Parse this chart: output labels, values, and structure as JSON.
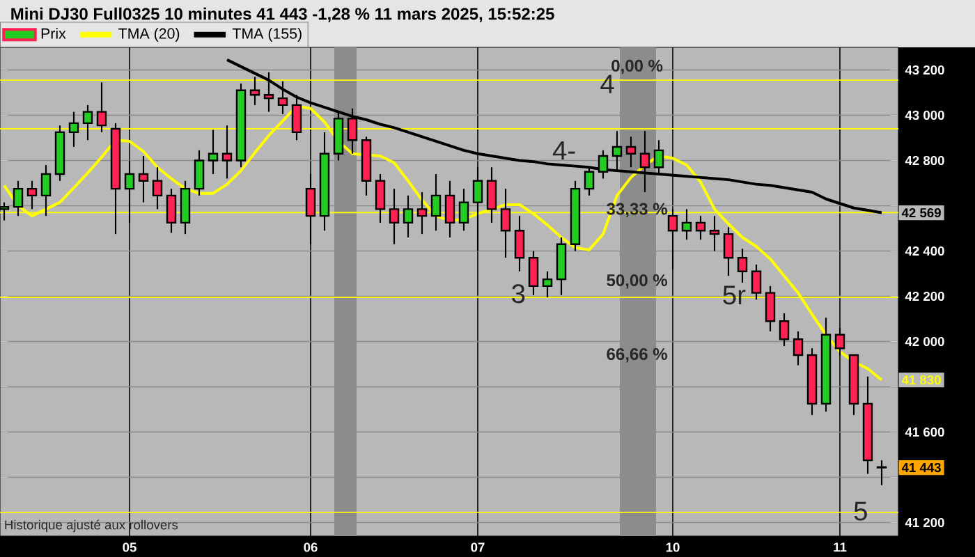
{
  "chart_data": {
    "type": "candlestick",
    "title": "Mini DJ30 Full0325 10 minutes 41 443 -1,28 % 11 mars 2025, 15:52:25",
    "annotations": [
      "Historique ajusté aux rollovers",
      "0,00 %",
      "33,33 %",
      "50,00 %",
      "66,66 %",
      "4",
      "4-",
      "3",
      "5r",
      "5"
    ],
    "categories": [
      null,
      null,
      null,
      null,
      null,
      null,
      null,
      null,
      null,
      "05",
      null,
      null,
      null,
      null,
      null,
      null,
      null,
      null,
      null,
      null,
      null,
      null,
      "06",
      null,
      null,
      null,
      null,
      null,
      null,
      null,
      null,
      null,
      null,
      null,
      "07",
      null,
      null,
      null,
      null,
      null,
      null,
      null,
      null,
      null,
      null,
      null,
      null,
      null,
      "10",
      null,
      null,
      null,
      null,
      null,
      null,
      null,
      null,
      null,
      null,
      null,
      "11",
      null,
      null,
      null
    ],
    "ylim": [
      41140,
      43300
    ],
    "yticks": [
      {
        "value": 41200,
        "label": "41 200"
      },
      {
        "value": 41400,
        "label": null
      },
      {
        "value": 41600,
        "label": "41 600"
      },
      {
        "value": 41800,
        "label": null
      },
      {
        "value": 42000,
        "label": "42 000"
      },
      {
        "value": 42200,
        "label": "42 200"
      },
      {
        "value": 42400,
        "label": "42 400"
      },
      {
        "value": 42600,
        "label": null
      },
      {
        "value": 42800,
        "label": "42 800"
      },
      {
        "value": 43000,
        "label": "43 000"
      },
      {
        "value": 43200,
        "label": "43 200"
      }
    ],
    "grid": true,
    "legend": "top left",
    "ref_lines": [
      {
        "axis": "y",
        "value": 43155,
        "color": "#ffff00"
      },
      {
        "axis": "y",
        "value": 42940,
        "color": "#ffff00"
      },
      {
        "axis": "y",
        "value": 42570,
        "color": "#ffff00"
      },
      {
        "axis": "y",
        "value": 42195,
        "color": "#ffff00"
      },
      {
        "axis": "y",
        "value": 41245,
        "color": "#ffff00"
      }
    ],
    "series": [
      {
        "name": "Prix",
        "colors": [
          "#22cc22",
          "#22cc22",
          "#ff2255",
          "#22cc22",
          "#22cc22",
          "#22cc22",
          "#22cc22",
          "#ff2255",
          "#ff2255",
          "#22cc22",
          "#ff2255",
          "#ff2255",
          "#ff2255",
          "#22cc22",
          "#22cc22",
          "#22cc22",
          "#ff2255",
          "#22cc22",
          "#ff2255",
          "#ff2255",
          "#ff2255",
          "#ff2255",
          "#ff2255",
          "#22cc22",
          "#22cc22",
          "#ff2255",
          "#ff2255",
          "#ff2255",
          "#ff2255",
          "#22cc22",
          "#ff2255",
          "#22cc22",
          "#ff2255",
          "#22cc22",
          "#22cc22",
          "#ff2255",
          "#ff2255",
          "#ff2255",
          "#ff2255",
          "#22cc22",
          "#22cc22",
          "#22cc22",
          "#22cc22",
          "#22cc22",
          "#22cc22",
          "#ff2255",
          "#ff2255",
          "#22cc22",
          "#ff2255",
          "#22cc22",
          "#ff2255",
          "#ff2255",
          "#ff2255",
          "#ff2255",
          "#ff2255",
          "#ff2255",
          "#ff2255",
          "#ff2255",
          "#ff2255",
          "#22cc22",
          "#ff2255",
          "#ff2255",
          "#ff2255",
          "#ff2255"
        ],
        "ohlc": [
          [
            42585,
            42615,
            42535,
            42595
          ],
          [
            42595,
            42710,
            42555,
            42675
          ],
          [
            42675,
            42710,
            42585,
            42645
          ],
          [
            42645,
            42780,
            42555,
            42740
          ],
          [
            42740,
            42955,
            42710,
            42925
          ],
          [
            42925,
            43015,
            42860,
            42965
          ],
          [
            42965,
            43045,
            42890,
            43015
          ],
          [
            43015,
            43145,
            42925,
            42955
          ],
          [
            42940,
            42965,
            42475,
            42675
          ],
          [
            42675,
            42800,
            42525,
            42740
          ],
          [
            42740,
            42820,
            42615,
            42710
          ],
          [
            42710,
            42770,
            42585,
            42645
          ],
          [
            42645,
            42675,
            42480,
            42525
          ],
          [
            42525,
            42710,
            42475,
            42675
          ],
          [
            42675,
            42845,
            42645,
            42800
          ],
          [
            42800,
            42935,
            42740,
            42830
          ],
          [
            42830,
            42955,
            42720,
            42800
          ],
          [
            42800,
            43140,
            42770,
            43110
          ],
          [
            43110,
            43170,
            43045,
            43090
          ],
          [
            43090,
            43190,
            43015,
            43075
          ],
          [
            43075,
            43150,
            43005,
            43045
          ],
          [
            43045,
            43090,
            42890,
            42925
          ],
          [
            42675,
            42740,
            42430,
            42555
          ],
          [
            42555,
            42925,
            42490,
            42830
          ],
          [
            42830,
            43015,
            42800,
            42985
          ],
          [
            42985,
            43030,
            42830,
            42890
          ],
          [
            42890,
            42905,
            42645,
            42710
          ],
          [
            42710,
            42740,
            42525,
            42585
          ],
          [
            42585,
            42675,
            42430,
            42525
          ],
          [
            42525,
            42645,
            42460,
            42585
          ],
          [
            42585,
            42660,
            42475,
            42555
          ],
          [
            42555,
            42740,
            42490,
            42645
          ],
          [
            42645,
            42710,
            42460,
            42525
          ],
          [
            42525,
            42675,
            42490,
            42615
          ],
          [
            42615,
            42770,
            42400,
            42710
          ],
          [
            42710,
            42770,
            42525,
            42585
          ],
          [
            42585,
            42675,
            42370,
            42490
          ],
          [
            42490,
            42555,
            42310,
            42370
          ],
          [
            42370,
            42400,
            42205,
            42245
          ],
          [
            42245,
            42310,
            42195,
            42275
          ],
          [
            42275,
            42460,
            42205,
            42430
          ],
          [
            42430,
            42710,
            42400,
            42675
          ],
          [
            42675,
            42770,
            42645,
            42750
          ],
          [
            42750,
            42845,
            42720,
            42820
          ],
          [
            42820,
            42930,
            42755,
            42860
          ],
          [
            42860,
            42905,
            42770,
            42830
          ],
          [
            42830,
            42930,
            42660,
            42770
          ],
          [
            42770,
            42890,
            42740,
            42845
          ],
          [
            42555,
            42585,
            42320,
            42490
          ],
          [
            42490,
            42585,
            42450,
            42525
          ],
          [
            42525,
            42555,
            42450,
            42490
          ],
          [
            42490,
            42555,
            42400,
            42475
          ],
          [
            42475,
            42505,
            42290,
            42370
          ],
          [
            42370,
            42410,
            42260,
            42310
          ],
          [
            42310,
            42340,
            42185,
            42215
          ],
          [
            42215,
            42245,
            42045,
            42090
          ],
          [
            42090,
            42125,
            41980,
            42010
          ],
          [
            42010,
            42045,
            41895,
            41940
          ],
          [
            41940,
            41970,
            41675,
            41725
          ],
          [
            41725,
            42105,
            41690,
            42030
          ],
          [
            42030,
            42060,
            41940,
            41970
          ],
          [
            41940,
            41940,
            41675,
            41725
          ],
          [
            41725,
            41845,
            41415,
            41475
          ],
          [
            41445,
            41475,
            41365,
            41443
          ]
        ],
        "value_labels": [
          null,
          null,
          null,
          null,
          null,
          null,
          null,
          null,
          null,
          null,
          null,
          null,
          null,
          null,
          null,
          null,
          null,
          null,
          null,
          null,
          null,
          null,
          null,
          null,
          null,
          null,
          null,
          null,
          null,
          null,
          null,
          null,
          null,
          null,
          null,
          null,
          null,
          null,
          null,
          null,
          null,
          null,
          null,
          null,
          null,
          null,
          null,
          null,
          null,
          null,
          null,
          null,
          null,
          null,
          null,
          null,
          null,
          null,
          null,
          null,
          null,
          null,
          null,
          "41 443"
        ]
      },
      {
        "name": "TMA (20)",
        "type": "line",
        "color": "#ffff00",
        "values": [
          42690,
          42600,
          42555,
          42585,
          42615,
          42680,
          42745,
          42815,
          42890,
          42885,
          42840,
          42770,
          42720,
          42675,
          42655,
          42655,
          42695,
          42755,
          42835,
          42910,
          42975,
          43040,
          43030,
          42970,
          42885,
          42830,
          42825,
          42820,
          42790,
          42710,
          42625,
          42555,
          42535,
          42540,
          42565,
          42585,
          42605,
          42605,
          42565,
          42515,
          42460,
          42415,
          42405,
          42475,
          42645,
          42725,
          42780,
          42820,
          42810,
          42780,
          42705,
          42585,
          42520,
          42460,
          42420,
          42365,
          42290,
          42215,
          42120,
          42030,
          41955,
          41910,
          41880,
          41830
        ],
        "value_labels": [
          null,
          null,
          null,
          null,
          null,
          null,
          null,
          null,
          null,
          null,
          null,
          null,
          null,
          null,
          null,
          null,
          null,
          null,
          null,
          null,
          null,
          null,
          null,
          null,
          null,
          null,
          null,
          null,
          null,
          null,
          null,
          null,
          null,
          null,
          null,
          null,
          null,
          null,
          null,
          null,
          null,
          null,
          null,
          null,
          null,
          null,
          null,
          null,
          null,
          null,
          null,
          null,
          null,
          null,
          null,
          null,
          null,
          null,
          null,
          null,
          null,
          null,
          null,
          "41 830"
        ]
      },
      {
        "name": "TMA (155)",
        "type": "line",
        "color": "#000000",
        "values": [
          null,
          null,
          null,
          null,
          null,
          null,
          null,
          null,
          null,
          null,
          null,
          null,
          null,
          null,
          null,
          null,
          43245,
          43215,
          43185,
          43155,
          43115,
          43080,
          43055,
          43035,
          43015,
          42995,
          42980,
          42960,
          42945,
          42925,
          42905,
          42885,
          42865,
          42845,
          42830,
          42820,
          42810,
          42800,
          42795,
          42785,
          42780,
          42775,
          42770,
          42760,
          42755,
          42750,
          42745,
          42740,
          42735,
          42730,
          42725,
          42720,
          42715,
          42705,
          42695,
          42690,
          42680,
          42670,
          42660,
          42630,
          42610,
          42590,
          42580,
          42569
        ],
        "value_labels": [
          null,
          null,
          null,
          null,
          null,
          null,
          null,
          null,
          null,
          null,
          null,
          null,
          null,
          null,
          null,
          null,
          null,
          null,
          null,
          null,
          null,
          null,
          null,
          null,
          null,
          null,
          null,
          null,
          null,
          null,
          null,
          null,
          null,
          null,
          null,
          null,
          null,
          null,
          null,
          null,
          null,
          null,
          null,
          null,
          null,
          null,
          null,
          null,
          null,
          null,
          null,
          null,
          null,
          null,
          null,
          null,
          null,
          null,
          null,
          null,
          null,
          null,
          null,
          "42 569"
        ]
      }
    ]
  }
}
